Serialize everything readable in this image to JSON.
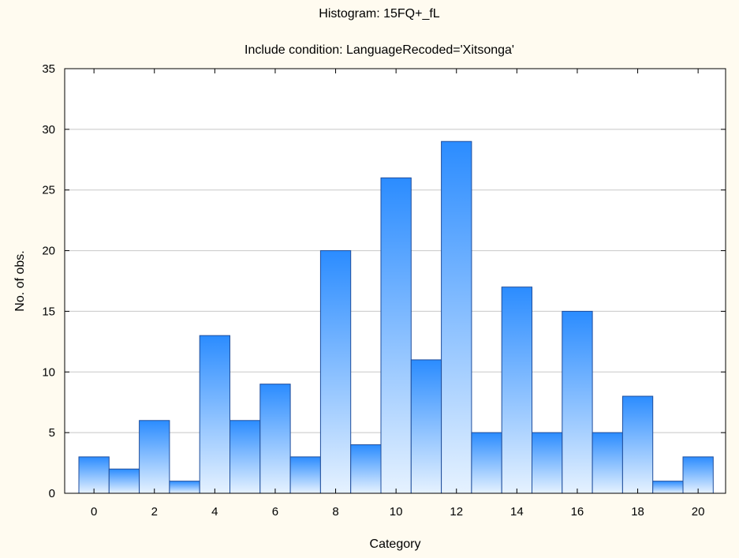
{
  "chart_data": {
    "type": "bar",
    "title": "Histogram: 15FQ+_fL",
    "subtitle": "Include condition: LanguageRecoded='Xitsonga'",
    "xlabel": "Category",
    "ylabel": "No. of obs.",
    "categories": [
      0,
      1,
      2,
      3,
      4,
      5,
      6,
      7,
      8,
      9,
      10,
      11,
      12,
      13,
      14,
      15,
      16,
      17,
      18,
      19,
      20
    ],
    "values": [
      3,
      2,
      6,
      1,
      13,
      6,
      9,
      3,
      20,
      4,
      26,
      11,
      29,
      5,
      17,
      5,
      15,
      5,
      8,
      1,
      3
    ],
    "xticks": [
      "0",
      "2",
      "4",
      "6",
      "8",
      "10",
      "12",
      "14",
      "16",
      "18",
      "20"
    ],
    "yticks": [
      "0",
      "5",
      "10",
      "15",
      "20",
      "25",
      "30",
      "35"
    ],
    "ylim": [
      0,
      35
    ],
    "grid": true,
    "colors": {
      "background": "#fffbf0",
      "plot_background": "#ffffff",
      "bar_top": "#2b8cff",
      "bar_bottom": "#e6f2ff",
      "bar_stroke": "#1f4e9c",
      "grid": "#c8c8c8",
      "axis": "#000000"
    }
  }
}
